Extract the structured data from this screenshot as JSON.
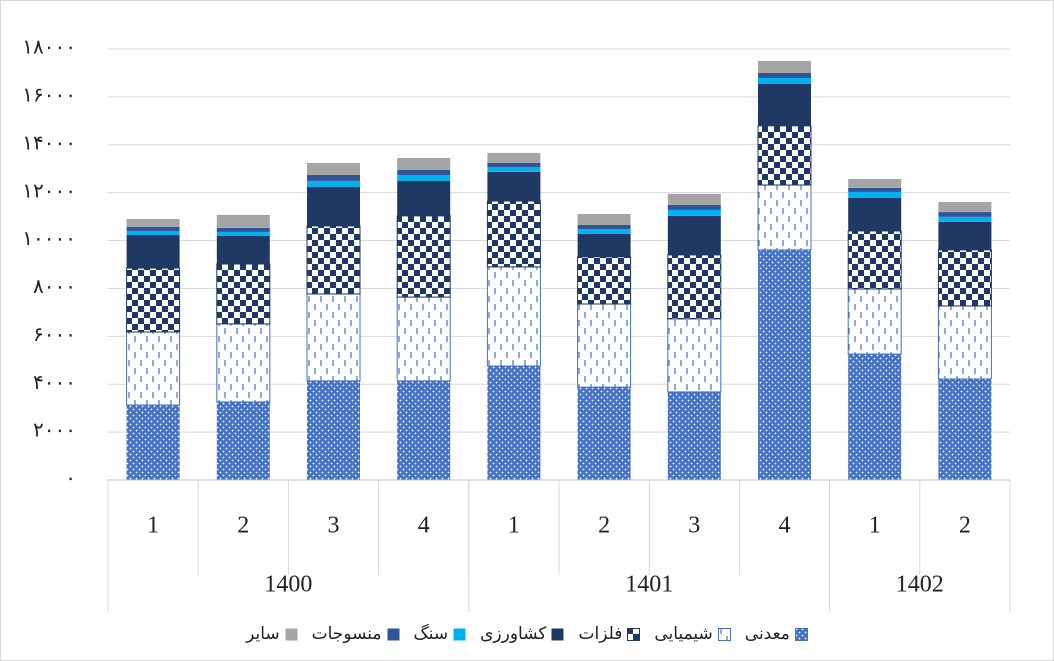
{
  "chart_data": {
    "type": "stacked_bar",
    "categories": [
      "1",
      "2",
      "3",
      "4",
      "1",
      "2",
      "3",
      "4",
      "1",
      "2"
    ],
    "groups": [
      {
        "label": "1400",
        "span": 4
      },
      {
        "label": "1401",
        "span": 4
      },
      {
        "label": "1402",
        "span": 2
      }
    ],
    "series": [
      {
        "name": "معدنی",
        "color": "#4472c4",
        "pattern": "dots",
        "values": [
          3130,
          3260,
          4140,
          4140,
          4760,
          3880,
          3680,
          9610,
          5260,
          4220
        ]
      },
      {
        "name": "شیمیایی",
        "color": "#4472c4",
        "pattern": "dashes",
        "values": [
          3050,
          3260,
          3630,
          3500,
          4140,
          3470,
          3050,
          2710,
          2720,
          3050
        ]
      },
      {
        "name": "فلزات",
        "color": "#1f3864",
        "pattern": "checker",
        "values": [
          2670,
          2500,
          2840,
          3390,
          2750,
          1970,
          2670,
          2470,
          2420,
          2340
        ]
      },
      {
        "name": "کشاورزی",
        "color": "#203864",
        "pattern": "solid",
        "values": [
          1380,
          1170,
          1630,
          1460,
          1220,
          960,
          1630,
          1750,
          1380,
          1170
        ]
      },
      {
        "name": "سنگ",
        "color": "#00b0f0",
        "pattern": "solid",
        "values": [
          170,
          170,
          250,
          250,
          200,
          200,
          250,
          250,
          250,
          210
        ]
      },
      {
        "name": "منسوجات",
        "color": "#2f5597",
        "pattern": "solid",
        "values": [
          170,
          170,
          250,
          210,
          170,
          170,
          210,
          210,
          170,
          200
        ]
      },
      {
        "name": "سایر",
        "color": "#a5a5a5",
        "pattern": "solid",
        "values": [
          330,
          540,
          500,
          500,
          420,
          460,
          460,
          500,
          370,
          420
        ]
      }
    ],
    "ylim": [
      0,
      18000
    ],
    "yticks": [
      {
        "value": 0,
        "label": "۰"
      },
      {
        "value": 2000,
        "label": "۲۰۰۰"
      },
      {
        "value": 4000,
        "label": "۴۰۰۰"
      },
      {
        "value": 6000,
        "label": "۶۰۰۰"
      },
      {
        "value": 8000,
        "label": "۸۰۰۰"
      },
      {
        "value": 10000,
        "label": "۱۰۰۰۰"
      },
      {
        "value": 12000,
        "label": "۱۲۰۰۰"
      },
      {
        "value": 14000,
        "label": "۱۴۰۰۰"
      },
      {
        "value": 16000,
        "label": "۱۶۰۰۰"
      },
      {
        "value": 18000,
        "label": "۱۸۰۰۰"
      }
    ],
    "grid": true
  }
}
